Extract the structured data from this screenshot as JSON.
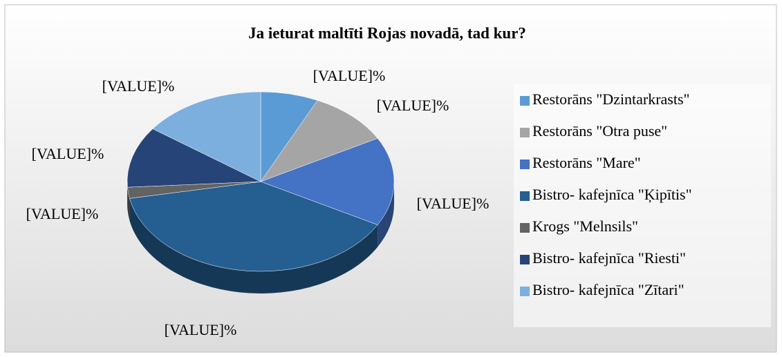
{
  "chart_data": {
    "type": "pie3d",
    "title": "Ja ieturat maltīti Rojas novadā, tad kur?",
    "categories": [
      "Restorāns \"Dzintarkrasts\"",
      "Restorāns \"Otra puse\"",
      "Restorāns \"Mare\"",
      "Bistro- kafejnīca \"Ķipītis\"",
      "Krogs \"Melnsils\"",
      "Bistro- kafejnīca \"Riesti\"",
      "Bistro- kafejnīca \"Zītari\""
    ],
    "values": [
      7,
      10,
      16,
      39,
      2,
      11,
      15
    ],
    "value_labels": [
      "[VALUE]%",
      "[VALUE]%",
      "[VALUE]%",
      "[VALUE]%",
      "[VALUE]%",
      "[VALUE]%",
      "[VALUE]%"
    ],
    "colors": [
      "#5b9bd5",
      "#a5a5a5",
      "#4472c4",
      "#255e91",
      "#636363",
      "#264478",
      "#7cafdd"
    ],
    "legend": "right"
  }
}
